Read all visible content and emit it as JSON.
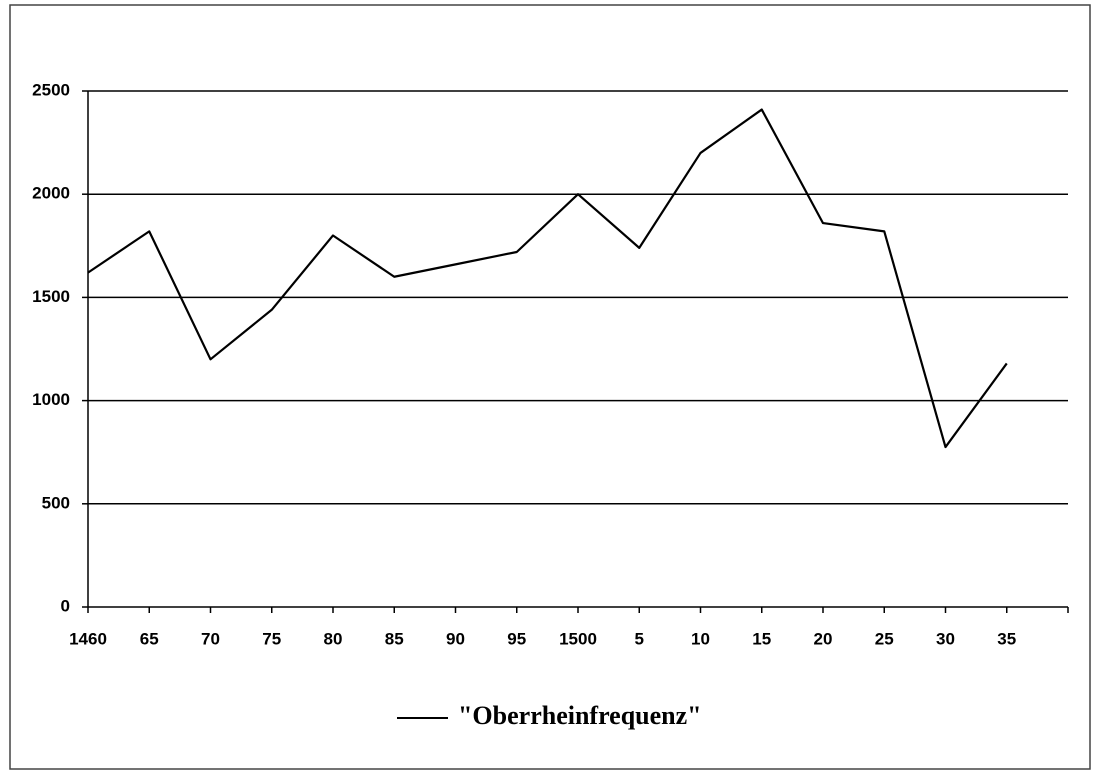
{
  "chart_data": {
    "type": "line",
    "categories": [
      "1460",
      "65",
      "70",
      "75",
      "80",
      "85",
      "90",
      "95",
      "1500",
      "5",
      "10",
      "15",
      "20",
      "25",
      "30",
      "35"
    ],
    "series": [
      {
        "name": "\"Oberrheinfrequenz\"",
        "color": "#000000",
        "values": [
          1620,
          1820,
          1200,
          1440,
          1800,
          1600,
          1660,
          1720,
          2000,
          1740,
          2200,
          2410,
          1860,
          1820,
          775,
          1180
        ]
      }
    ],
    "ylim": [
      0,
      2500
    ],
    "yticks": [
      0,
      500,
      1000,
      1500,
      2000,
      2500
    ],
    "grid": true,
    "legend": "bottom"
  }
}
